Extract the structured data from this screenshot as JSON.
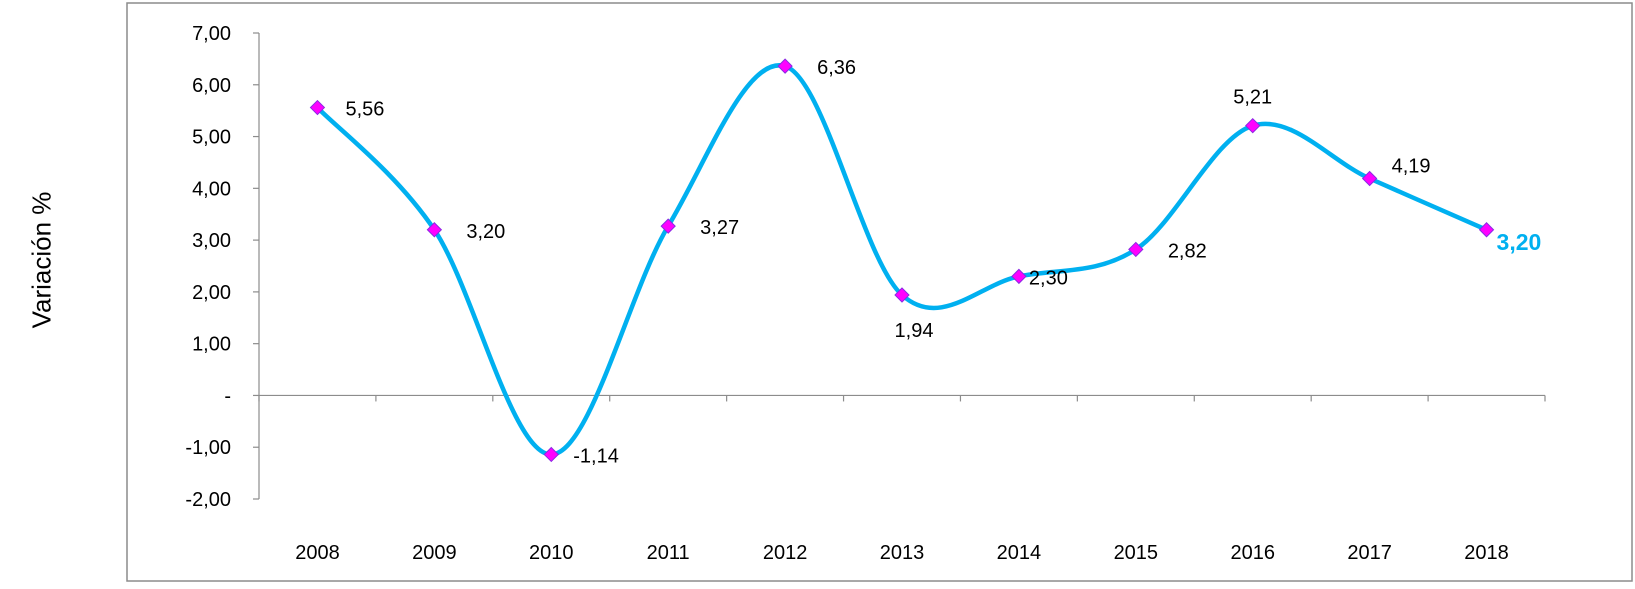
{
  "chart_data": {
    "type": "line",
    "title": "",
    "xlabel": "",
    "ylabel": "Variación %",
    "ylim": [
      -2,
      7
    ],
    "y_ticks": [
      {
        "value": 7,
        "label": "7,00"
      },
      {
        "value": 6,
        "label": "6,00"
      },
      {
        "value": 5,
        "label": "5,00"
      },
      {
        "value": 4,
        "label": "4,00"
      },
      {
        "value": 3,
        "label": "3,00"
      },
      {
        "value": 2,
        "label": "2,00"
      },
      {
        "value": 1,
        "label": "1,00"
      },
      {
        "value": 0,
        "label": "-"
      },
      {
        "value": -1,
        "label": "-1,00"
      },
      {
        "value": -2,
        "label": "-2,00"
      }
    ],
    "categories": [
      "2008",
      "2009",
      "2010",
      "2011",
      "2012",
      "2013",
      "2014",
      "2015",
      "2016",
      "2017",
      "2018"
    ],
    "series": [
      {
        "values": [
          5.56,
          3.2,
          -1.14,
          3.27,
          6.36,
          1.94,
          2.3,
          2.82,
          5.21,
          4.19,
          3.2
        ],
        "labels": [
          "5,56",
          "3,20",
          "-1,14",
          "3,27",
          "6,36",
          "1,94",
          "2,30",
          "2,82",
          "5,21",
          "4,19",
          "3,20"
        ],
        "line_color": "#00b0f0",
        "marker_color": "#ff00ff",
        "marker_shape": "diamond",
        "smooth": true
      }
    ],
    "highlight_last_label_color": "#00b0f0",
    "grid": false,
    "legend": "none"
  }
}
